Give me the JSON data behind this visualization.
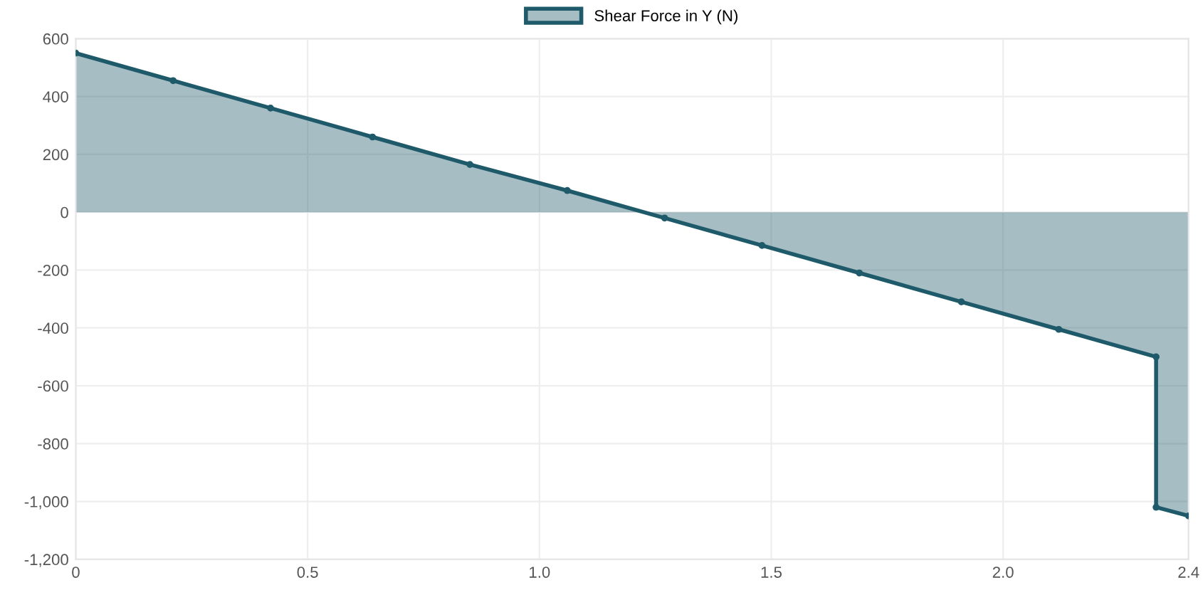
{
  "chart_data": {
    "type": "area",
    "x": [
      0,
      0.21,
      0.42,
      0.64,
      0.85,
      1.06,
      1.27,
      1.48,
      1.69,
      1.91,
      2.12,
      2.33,
      2.33,
      2.4
    ],
    "series": [
      {
        "name": "Shear Force in Y (N)",
        "color": "#1f5a6a",
        "values": [
          550,
          455,
          360,
          260,
          165,
          75,
          -20,
          -115,
          -210,
          -310,
          -405,
          -500,
          -1020,
          -1050
        ]
      }
    ],
    "xlim": [
      0,
      2.4
    ],
    "xticks": [
      0,
      0.5,
      {
        "value": 1.0,
        "label": "1.0"
      },
      1.5,
      {
        "value": 2.0,
        "label": "2.0"
      },
      2.4
    ],
    "ylim": [
      -1200,
      600
    ],
    "yticks": [
      {
        "value": -1200,
        "label": "-1,200"
      },
      {
        "value": -1000,
        "label": "-1,000"
      },
      -800,
      -600,
      -400,
      -200,
      0,
      200,
      400,
      600
    ],
    "grid": true,
    "legend": "top",
    "marker": "circle"
  }
}
